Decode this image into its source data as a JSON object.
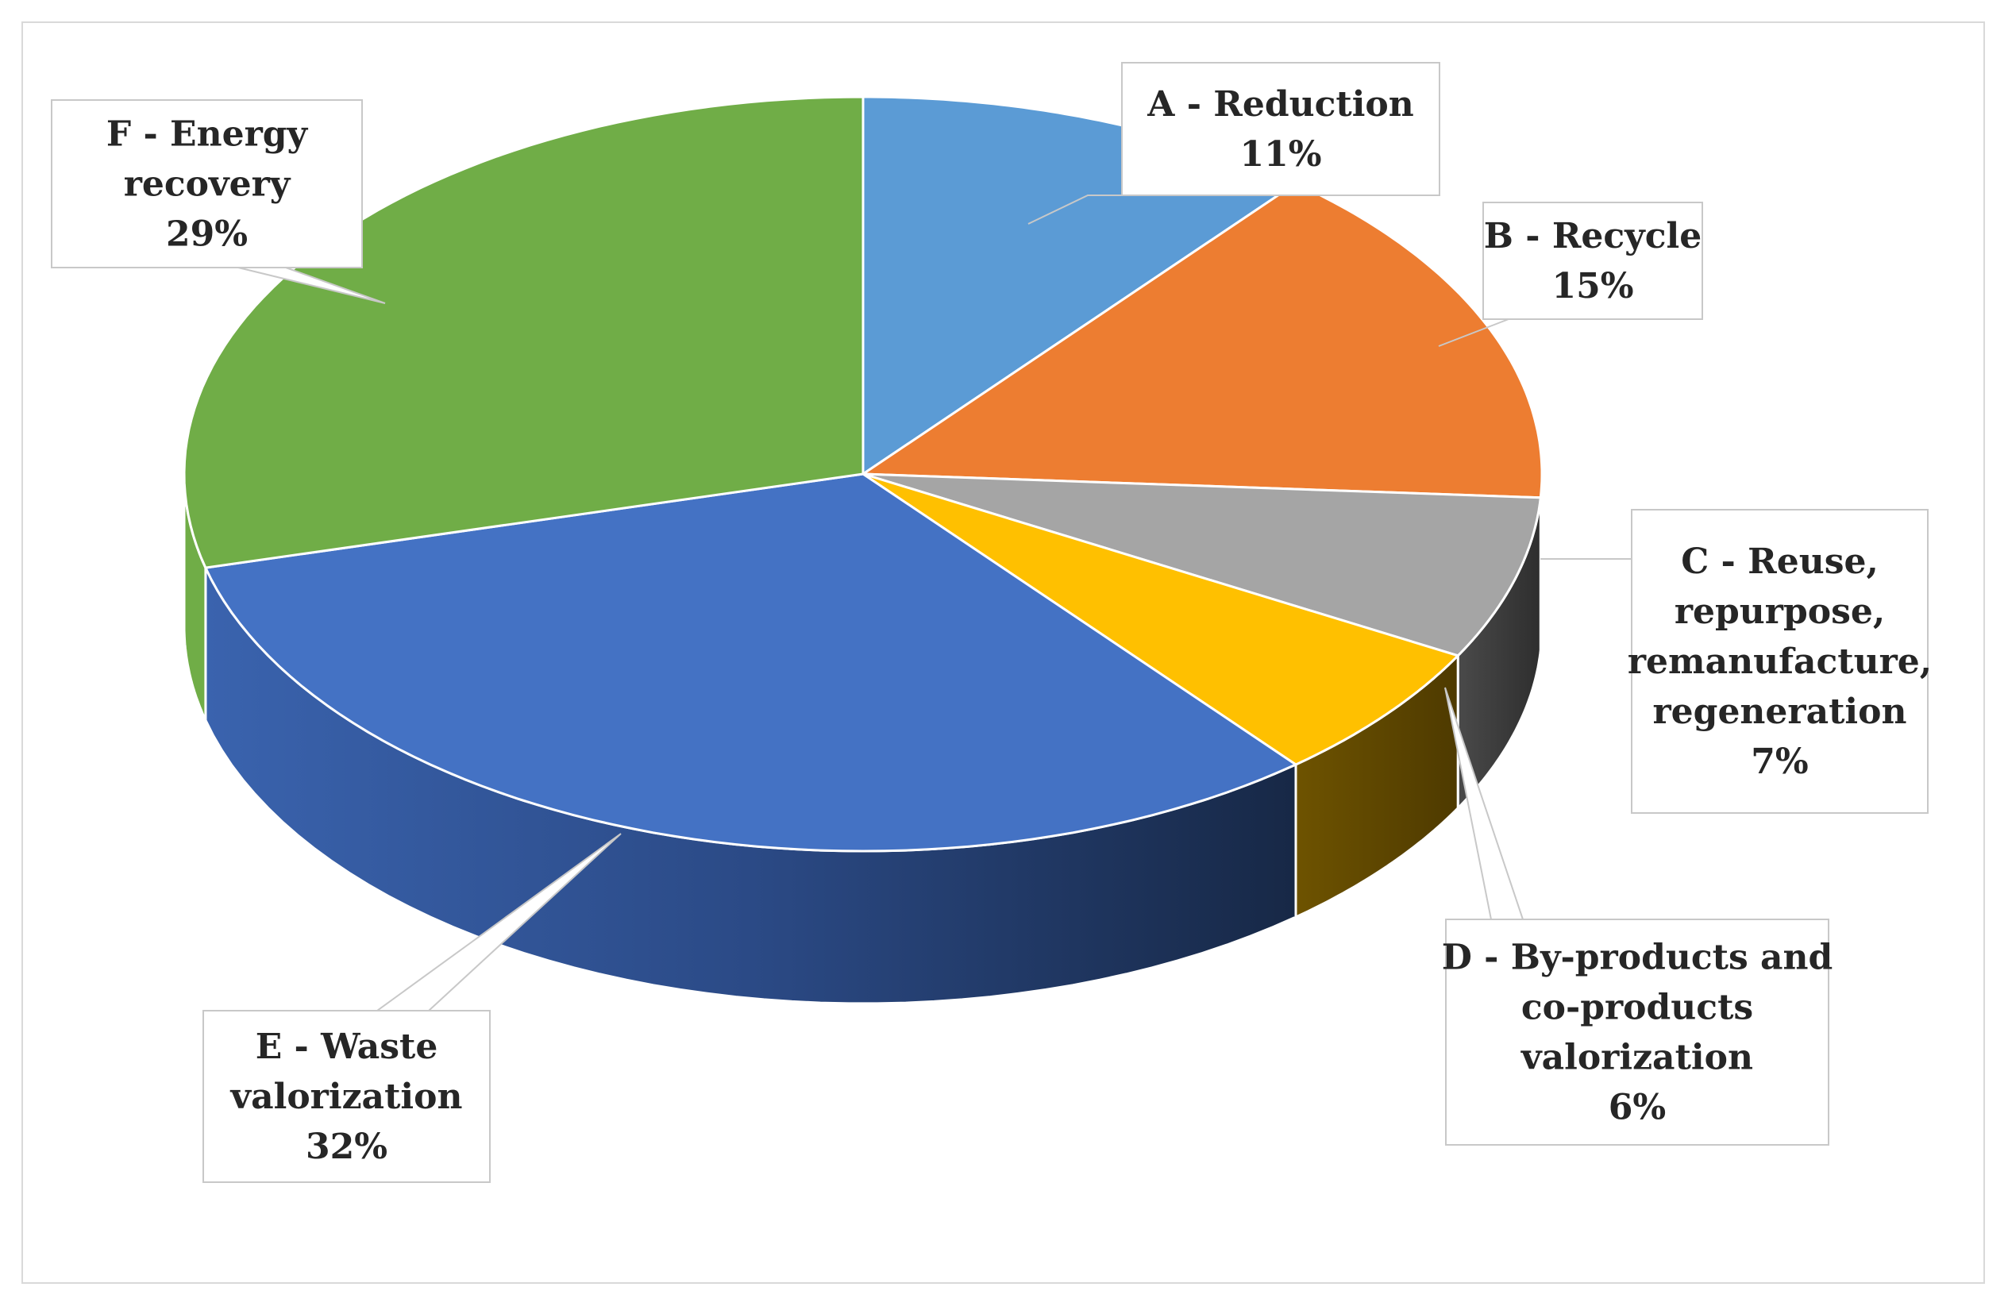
{
  "chart_data": {
    "type": "pie",
    "style": "3d-exploded-none",
    "legend": "none",
    "slices": [
      {
        "label": [
          "A - Reduction"
        ],
        "value": 11,
        "percent_label": "11%",
        "color": "#5B9BD5"
      },
      {
        "label": [
          "B - Recycle"
        ],
        "value": 15,
        "percent_label": "15%",
        "color": "#ED7D31"
      },
      {
        "label": [
          "C - Reuse,",
          "repurpose,",
          "remanufacture,",
          "regeneration"
        ],
        "value": 7,
        "percent_label": "7%",
        "color": "#A5A5A5"
      },
      {
        "label": [
          "D - By-products and",
          "co-products",
          "valorization"
        ],
        "value": 6,
        "percent_label": "6%",
        "color": "#FFC000"
      },
      {
        "label": [
          "E - Waste",
          "valorization"
        ],
        "value": 32,
        "percent_label": "32%",
        "color": "#4472C4"
      },
      {
        "label": [
          "F - Energy",
          "recovery"
        ],
        "value": 29,
        "percent_label": "29%",
        "color": "#70AD47"
      }
    ]
  }
}
